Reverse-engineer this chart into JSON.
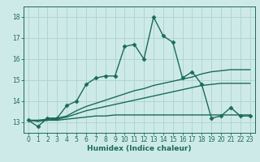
{
  "bg_color": "#ceeae8",
  "grid_color": "#b0d5d3",
  "line_color": "#1a6b5a",
  "marker_style": "D",
  "marker_size": 2.5,
  "line_width": 1.0,
  "xlabel": "Humidex (Indice chaleur)",
  "xlim": [
    -0.5,
    23.5
  ],
  "ylim": [
    12.5,
    18.5
  ],
  "yticks": [
    13,
    14,
    15,
    16,
    17,
    18
  ],
  "xticks": [
    0,
    1,
    2,
    3,
    4,
    5,
    6,
    7,
    8,
    9,
    10,
    11,
    12,
    13,
    14,
    15,
    16,
    17,
    18,
    19,
    20,
    21,
    22,
    23
  ],
  "series_main": [
    13.1,
    12.8,
    13.2,
    13.2,
    13.8,
    14.0,
    14.8,
    15.1,
    15.2,
    15.2,
    16.6,
    16.7,
    16.0,
    18.0,
    17.1,
    16.8,
    15.1,
    15.4,
    14.8,
    13.2,
    13.3,
    13.7,
    13.3,
    13.3
  ],
  "series_line1": [
    13.1,
    13.1,
    13.15,
    13.2,
    13.3,
    13.55,
    13.75,
    13.9,
    14.05,
    14.2,
    14.35,
    14.5,
    14.6,
    14.75,
    14.85,
    14.95,
    15.05,
    15.15,
    15.3,
    15.4,
    15.45,
    15.5,
    15.5,
    15.5
  ],
  "series_line2": [
    13.1,
    13.05,
    13.1,
    13.15,
    13.25,
    13.4,
    13.55,
    13.65,
    13.75,
    13.85,
    13.95,
    14.05,
    14.15,
    14.25,
    14.35,
    14.45,
    14.55,
    14.65,
    14.75,
    14.8,
    14.85,
    14.85,
    14.85,
    14.85
  ],
  "series_line3": [
    13.1,
    13.05,
    13.1,
    13.1,
    13.15,
    13.2,
    13.25,
    13.3,
    13.3,
    13.35,
    13.35,
    13.35,
    13.35,
    13.35,
    13.35,
    13.35,
    13.35,
    13.35,
    13.35,
    13.35,
    13.35,
    13.35,
    13.35,
    13.35
  ]
}
